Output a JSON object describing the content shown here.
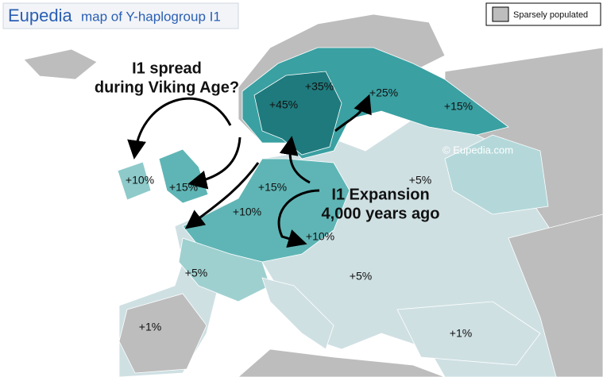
{
  "header": {
    "logo": "Eupedia",
    "title": "map of Y-haplogroup I1"
  },
  "legend": {
    "label": "Sparsely populated"
  },
  "watermark": "© Eupedia.com",
  "annotations": [
    {
      "lines": [
        "I1 spread",
        "during Viking Age?"
      ]
    },
    {
      "lines": [
        "I1 Expansion",
        "4,000 years ago"
      ]
    }
  ],
  "regions": [
    {
      "label": "+35%"
    },
    {
      "label": "+45%"
    },
    {
      "label": "+25%"
    },
    {
      "label": "+15%"
    },
    {
      "label": "+10%"
    },
    {
      "label": "+15%"
    },
    {
      "label": "+15%"
    },
    {
      "label": "+10%"
    },
    {
      "label": "+5%"
    },
    {
      "label": "+10%"
    },
    {
      "label": "+5%"
    },
    {
      "label": "+5%"
    },
    {
      "label": "+1%"
    },
    {
      "label": "+1%"
    }
  ]
}
